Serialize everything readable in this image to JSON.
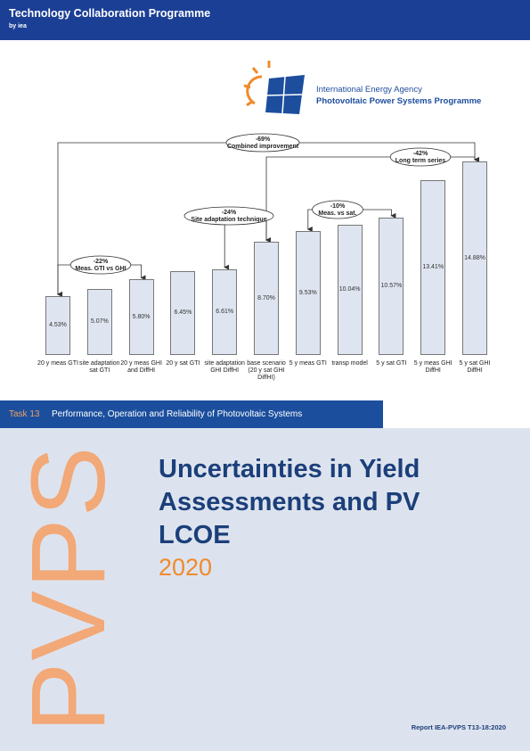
{
  "header": {
    "title": "Technology Collaboration Programme",
    "byline": "by iea"
  },
  "logo": {
    "line1": "International Energy Agency",
    "line2": "Photovoltaic Power Systems Programme"
  },
  "chart_data": {
    "type": "bar",
    "categories": [
      "20 y meas GTI",
      "site adaptation sat GTI",
      "20 y meas GHI and DiffHI",
      "20 y sat GTI",
      "site adaptation GHI DiffHI",
      "base scenario (20 y sat GHI DiffHI)",
      "5 y meas GTI",
      "transp model",
      "5 y sat GTI",
      "5 y meas GHI DiffHI",
      "5 y sat GHI DiffHI"
    ],
    "values": [
      4.53,
      5.07,
      5.8,
      6.45,
      6.61,
      8.7,
      9.53,
      10.04,
      10.57,
      13.41,
      14.88
    ],
    "value_labels": [
      "4.53%",
      "5.07%",
      "5.80%",
      "6.45%",
      "6.61%",
      "8.70%",
      "9.53%",
      "10.04%",
      "10.57%",
      "13.41%",
      "14.88%"
    ],
    "color": "#dfe5f0",
    "annotations": [
      {
        "change": "-69%",
        "text": "Combined improvement"
      },
      {
        "change": "-42%",
        "text": "Long term series"
      },
      {
        "change": "-24%",
        "text": "Site adaptation technique"
      },
      {
        "change": "-10%",
        "text": "Meas. vs sat."
      },
      {
        "change": "-22%",
        "text": "Meas. GTI vs GHI"
      }
    ]
  },
  "task": {
    "number": "Task 13",
    "name": "Performance, Operation and Reliability of Photovoltaic Systems"
  },
  "cover": {
    "brand": "PVPS",
    "title": [
      "Uncertainties in Yield",
      "Assessments and PV",
      "LCOE"
    ],
    "year": "2020",
    "report": "Report IEA-PVPS T13-18:2020"
  }
}
